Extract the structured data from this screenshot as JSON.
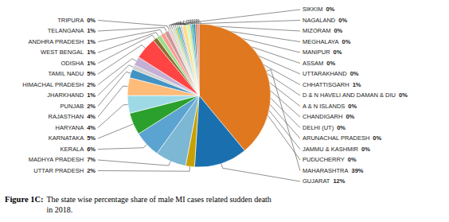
{
  "chart_data": {
    "type": "pie",
    "title": "Figure 1C:",
    "subtitle": " The state wise percentage share of male MI cases related sudden death\n in 2018.",
    "categories": [
      "MAHARASHTRA",
      "GUJARAT",
      "UTTAR PRADESH",
      "MADHYA PRADESH",
      "KERALA",
      "KARNATAKA",
      "HARYANA",
      "RAJASTHAN",
      "PUNJAB",
      "JHARKHAND",
      "HIMACHAL PRADESH",
      "TAMIL NADU",
      "ODISHA",
      "WEST BENGAL",
      "ANDHRA PRADESH",
      "TELANGANA",
      "TRIPURA",
      "SIKKIM",
      "NAGALAND",
      "MIZORAM",
      "MEGHALAYA",
      "MANIPUR",
      "ASSAM",
      "UTTARAKHAND",
      "CHHATTISGARH",
      "D & N HAVELI AND DAMAN & DIU",
      "A & N ISLANDS",
      "CHANDIGARH",
      "DELHI (UT)",
      "ARUNACHAL PRADESH",
      "JAMMU & KASHMIR",
      "PUDUCHERRY"
    ],
    "values": [
      39,
      12,
      2,
      7,
      6,
      5,
      4,
      4,
      2,
      1,
      2,
      5,
      1,
      1,
      1,
      1,
      0.4,
      0.4,
      0.4,
      0.4,
      0.4,
      0.4,
      0.4,
      0.4,
      1,
      0.4,
      0.4,
      0.4,
      0.4,
      0.4,
      0.4,
      0.4
    ],
    "value_labels": [
      "39%",
      "12%",
      "2%",
      "7%",
      "6%",
      "5%",
      "4%",
      "4%",
      "2%",
      "1%",
      "2%",
      "5%",
      "1%",
      "1%",
      "1%",
      "1%",
      "0%",
      "0%",
      "0%",
      "0%",
      "0%",
      "0%",
      "0%",
      "0%",
      "1%",
      "0%",
      "0%",
      "0%",
      "0%",
      "0%",
      "0%",
      "0%"
    ],
    "colors": [
      "#E07820",
      "#1A6FAF",
      "#C8A000",
      "#7CB7D4",
      "#5BA3D0",
      "#2CA02C",
      "#9EDAE5",
      "#FFBB78",
      "#4393C3",
      "#D0D0D0",
      "#C5B0D5",
      "#FF4444",
      "#8C6D31",
      "#98DF8A",
      "#FF9896",
      "#C49C94",
      "#F7B6D2",
      "#C7C7C7",
      "#DBDB8D",
      "#AAD4E5",
      "#BCBD22",
      "#17BECF",
      "#7F7F7F",
      "#AEC7E8",
      "#FFDD89",
      "#AAFFC3",
      "#F0E442",
      "#56B4E9",
      "#009E73",
      "#0072B2",
      "#D55E00",
      "#CC79A7"
    ],
    "data_labels": true
  }
}
